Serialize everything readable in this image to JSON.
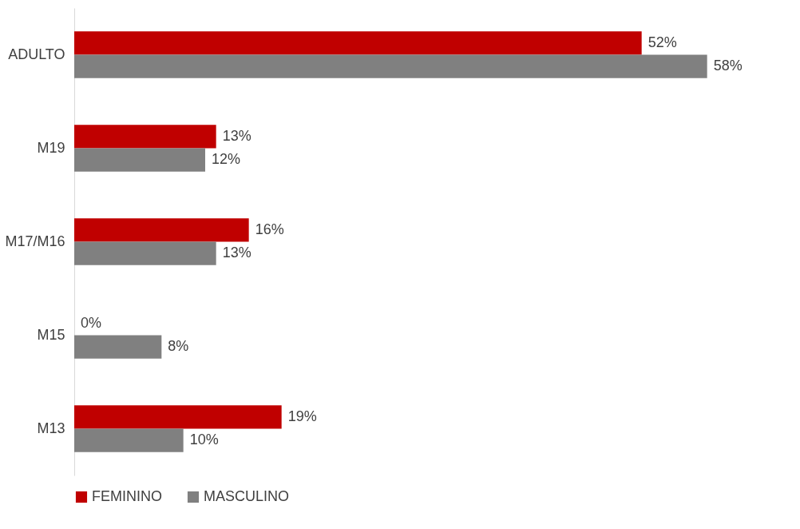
{
  "chart_data": {
    "type": "bar",
    "orientation": "horizontal",
    "categories": [
      "ADULTO",
      "M19",
      "M17/M16",
      "M15",
      "M13"
    ],
    "series": [
      {
        "name": "FEMININO",
        "color": "#c00000",
        "values": [
          52,
          13,
          16,
          0,
          19
        ],
        "value_labels": [
          "52%",
          "13%",
          "16%",
          "0%",
          "19%"
        ]
      },
      {
        "name": "MASCULINO",
        "color": "#808080",
        "values": [
          58,
          12,
          13,
          8,
          10
        ],
        "value_labels": [
          "58%",
          "12%",
          "13%",
          "8%",
          "10%"
        ]
      }
    ],
    "legend": "bottom"
  }
}
